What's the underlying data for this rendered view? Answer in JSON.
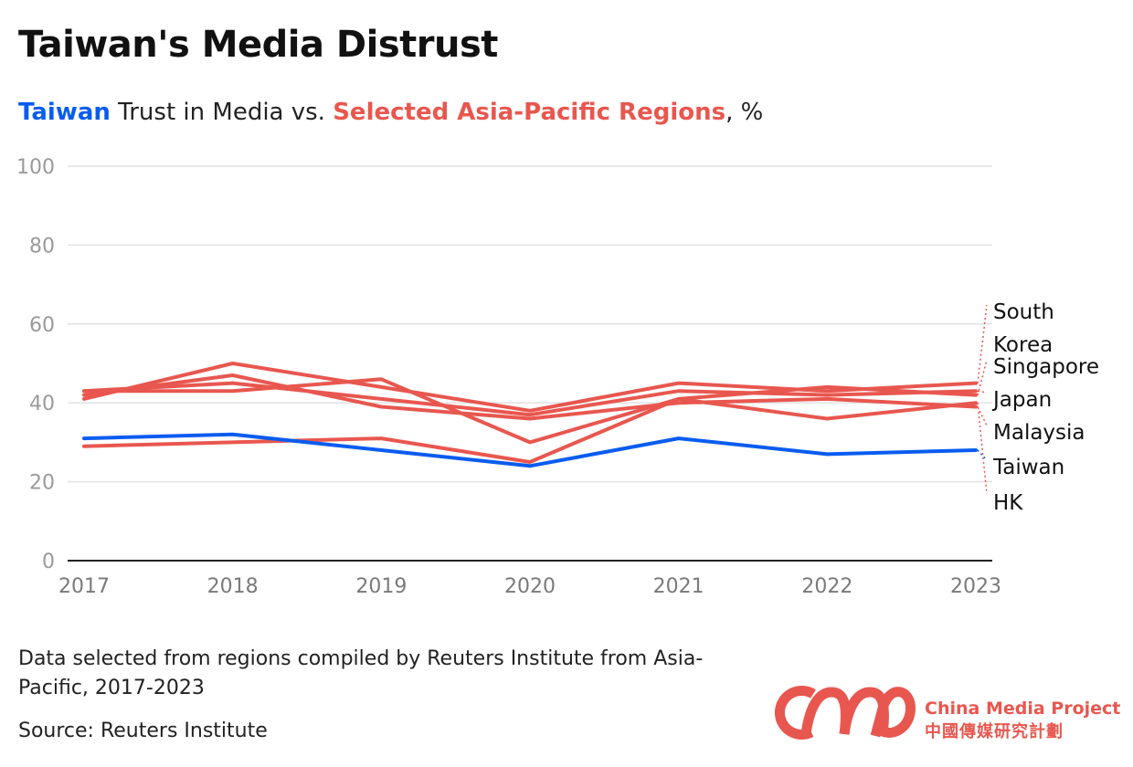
{
  "header": {
    "title": "Taiwan's Media Distrust",
    "subtitle_taiwan": "Taiwan",
    "subtitle_mid": " Trust in Media vs. ",
    "subtitle_regions": "Selected Asia-Pacific Regions",
    "subtitle_end": ", %"
  },
  "colors": {
    "taiwan": "#0a5cf0",
    "regions": "#e8574f",
    "grid": "#e2e2e2",
    "axis": "#222222",
    "tick_text": "#9a9a9a"
  },
  "chart_data": {
    "type": "line",
    "x": [
      "2017",
      "2018",
      "2019",
      "2020",
      "2021",
      "2022",
      "2023"
    ],
    "ylim": [
      0,
      100
    ],
    "yticks": [
      "0",
      "20",
      "40",
      "60",
      "80",
      "100"
    ],
    "grid": true,
    "series": [
      {
        "name": "South Korea",
        "values": [
          41,
          50,
          44,
          38,
          45,
          43,
          45
        ],
        "color": "#e8574f"
      },
      {
        "name": "Singapore",
        "values": [
          43,
          43,
          46,
          30,
          41,
          44,
          42
        ],
        "color": "#e8574f"
      },
      {
        "name": "Japan",
        "values": [
          43,
          45,
          41,
          37,
          43,
          42,
          43
        ],
        "color": "#e8574f"
      },
      {
        "name": "Malaysia",
        "values": [
          42,
          47,
          39,
          36,
          40,
          41,
          39
        ],
        "color": "#e8574f"
      },
      {
        "name": "Taiwan",
        "values": [
          31,
          32,
          28,
          24,
          31,
          27,
          28
        ],
        "color": "#0a5cf0"
      },
      {
        "name": "HK",
        "values": [
          29,
          30,
          31,
          25,
          41,
          36,
          40
        ],
        "color": "#e8574f"
      }
    ],
    "end_labels": [
      "South",
      "Korea",
      "Singapore",
      "Japan",
      "Malaysia",
      "Taiwan",
      "HK"
    ]
  },
  "footer": {
    "note": "Data selected from regions compiled by Reuters Institute from Asia-Pacific, 2017-2023",
    "source": "Source: Reuters Institute",
    "brand_en": "China Media Project",
    "brand_zh": "中國傳媒研究計劃",
    "logo_icon": "cmp-logo-icon"
  }
}
